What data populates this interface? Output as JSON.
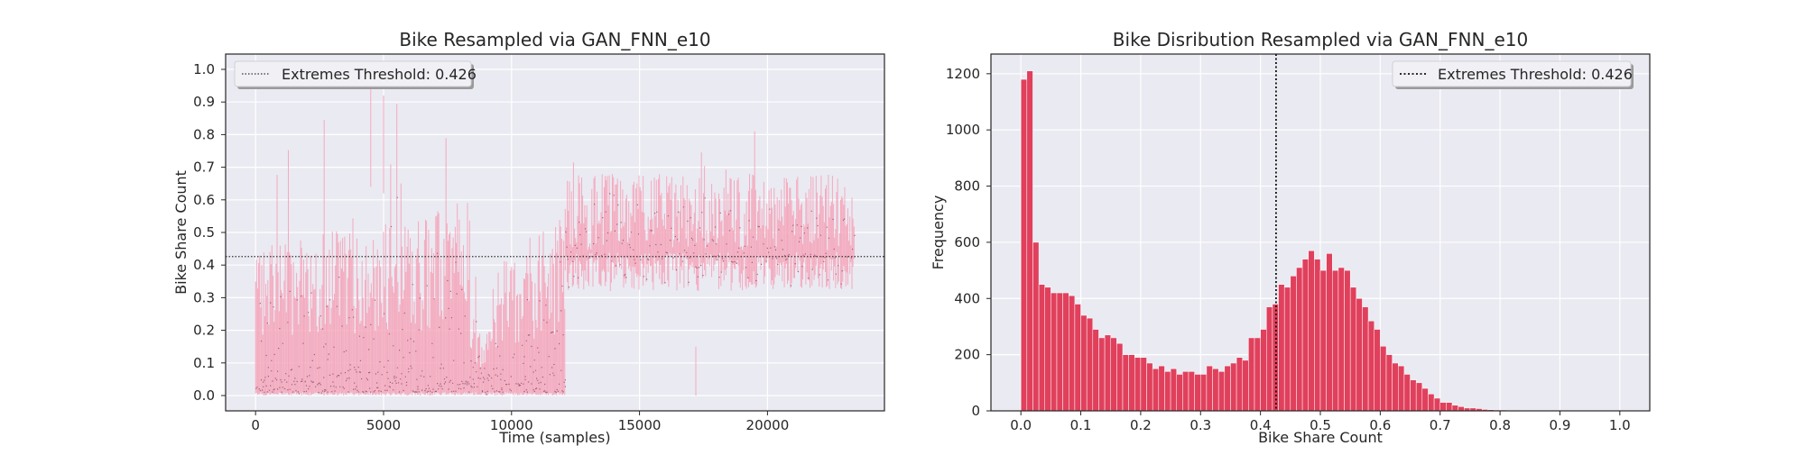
{
  "chart_data": [
    {
      "type": "line",
      "title": "Bike Resampled via GAN_FNN_e10",
      "xlabel": "Time (samples)",
      "ylabel": "Bike Share Count",
      "xlim": [
        -1170,
        24570
      ],
      "ylim": [
        -0.047,
        1.047
      ],
      "xticks": [
        0,
        5000,
        10000,
        15000,
        20000
      ],
      "yticks": [
        0.0,
        0.1,
        0.2,
        0.3,
        0.4,
        0.5,
        0.6,
        0.7,
        0.8,
        0.9,
        1.0
      ],
      "grid": true,
      "legend": {
        "placement": "top-left",
        "entries": [
          "Extremes Threshold: 0.426"
        ]
      },
      "threshold": {
        "value": 0.426,
        "style": "dotted",
        "color": "#333333"
      },
      "series": [
        {
          "color": "#f4a7bb",
          "dot_color": "#8a4a68",
          "segments": [
            {
              "x": [
                0,
                8400
              ],
              "low": [
                0.0,
                0.0
              ],
              "typical_high": [
                0.45,
                0.6
              ],
              "peak": 0.94
            },
            {
              "x": [
                8400,
                9200
              ],
              "low": [
                0.0,
                0.0
              ],
              "typical_high": [
                0.25,
                0.2
              ],
              "peak": 0.4
            },
            {
              "x": [
                9200,
                12100
              ],
              "low": [
                0.0,
                0.0
              ],
              "typical_high": [
                0.4,
                0.55
              ],
              "peak": 0.6
            },
            {
              "x": [
                12100,
                23400
              ],
              "low": [
                0.32,
                0.32
              ],
              "typical_high": [
                0.68,
                0.68
              ],
              "peak": 0.82
            }
          ],
          "notable_points": [
            [
              4500,
              0.94
            ],
            [
              5000,
              0.92
            ],
            [
              17200,
              0.15
            ],
            [
              19500,
              0.81
            ]
          ]
        }
      ],
      "colors": {
        "face": "#eaeaf2",
        "grid": "#ffffff",
        "line": "#f4a7bb",
        "dots": "#8a4a68",
        "threshold": "#333333"
      }
    },
    {
      "type": "bar",
      "title": "Bike Disribution Resampled via GAN_FNN_e10",
      "xlabel": "Bike Share Count",
      "ylabel": "Frequency",
      "xlim": [
        -0.05,
        1.05
      ],
      "ylim": [
        0,
        1270
      ],
      "xticks": [
        0.0,
        0.1,
        0.2,
        0.3,
        0.4,
        0.5,
        0.6,
        0.7,
        0.8,
        0.9,
        1.0
      ],
      "yticks": [
        0,
        200,
        400,
        600,
        800,
        1000,
        1200
      ],
      "grid": true,
      "legend": {
        "placement": "top-right",
        "entries": [
          "Extremes Threshold: 0.426"
        ]
      },
      "threshold": {
        "value": 0.426,
        "style": "dotted",
        "color": "#111111"
      },
      "bin_start": 0.0,
      "bin_width": 0.01,
      "values": [
        1180,
        1210,
        600,
        450,
        440,
        420,
        420,
        420,
        410,
        380,
        340,
        330,
        290,
        260,
        270,
        260,
        240,
        200,
        200,
        190,
        190,
        170,
        150,
        160,
        140,
        150,
        130,
        140,
        140,
        130,
        130,
        160,
        150,
        140,
        160,
        170,
        190,
        180,
        260,
        260,
        290,
        370,
        380,
        450,
        440,
        480,
        510,
        540,
        570,
        540,
        500,
        560,
        500,
        510,
        500,
        440,
        400,
        370,
        320,
        290,
        230,
        200,
        170,
        160,
        130,
        110,
        100,
        80,
        60,
        45,
        30,
        30,
        20,
        15,
        10,
        10,
        8,
        5,
        4,
        3,
        3,
        2,
        2,
        2,
        1,
        1,
        1,
        1,
        0,
        0,
        0,
        0,
        0,
        0,
        0,
        0,
        0,
        0,
        0,
        0
      ],
      "colors": {
        "face": "#eaeaf2",
        "grid": "#ffffff",
        "bar": "#e0405c",
        "bar_edge": "#ffffff",
        "threshold": "#111111"
      }
    }
  ]
}
